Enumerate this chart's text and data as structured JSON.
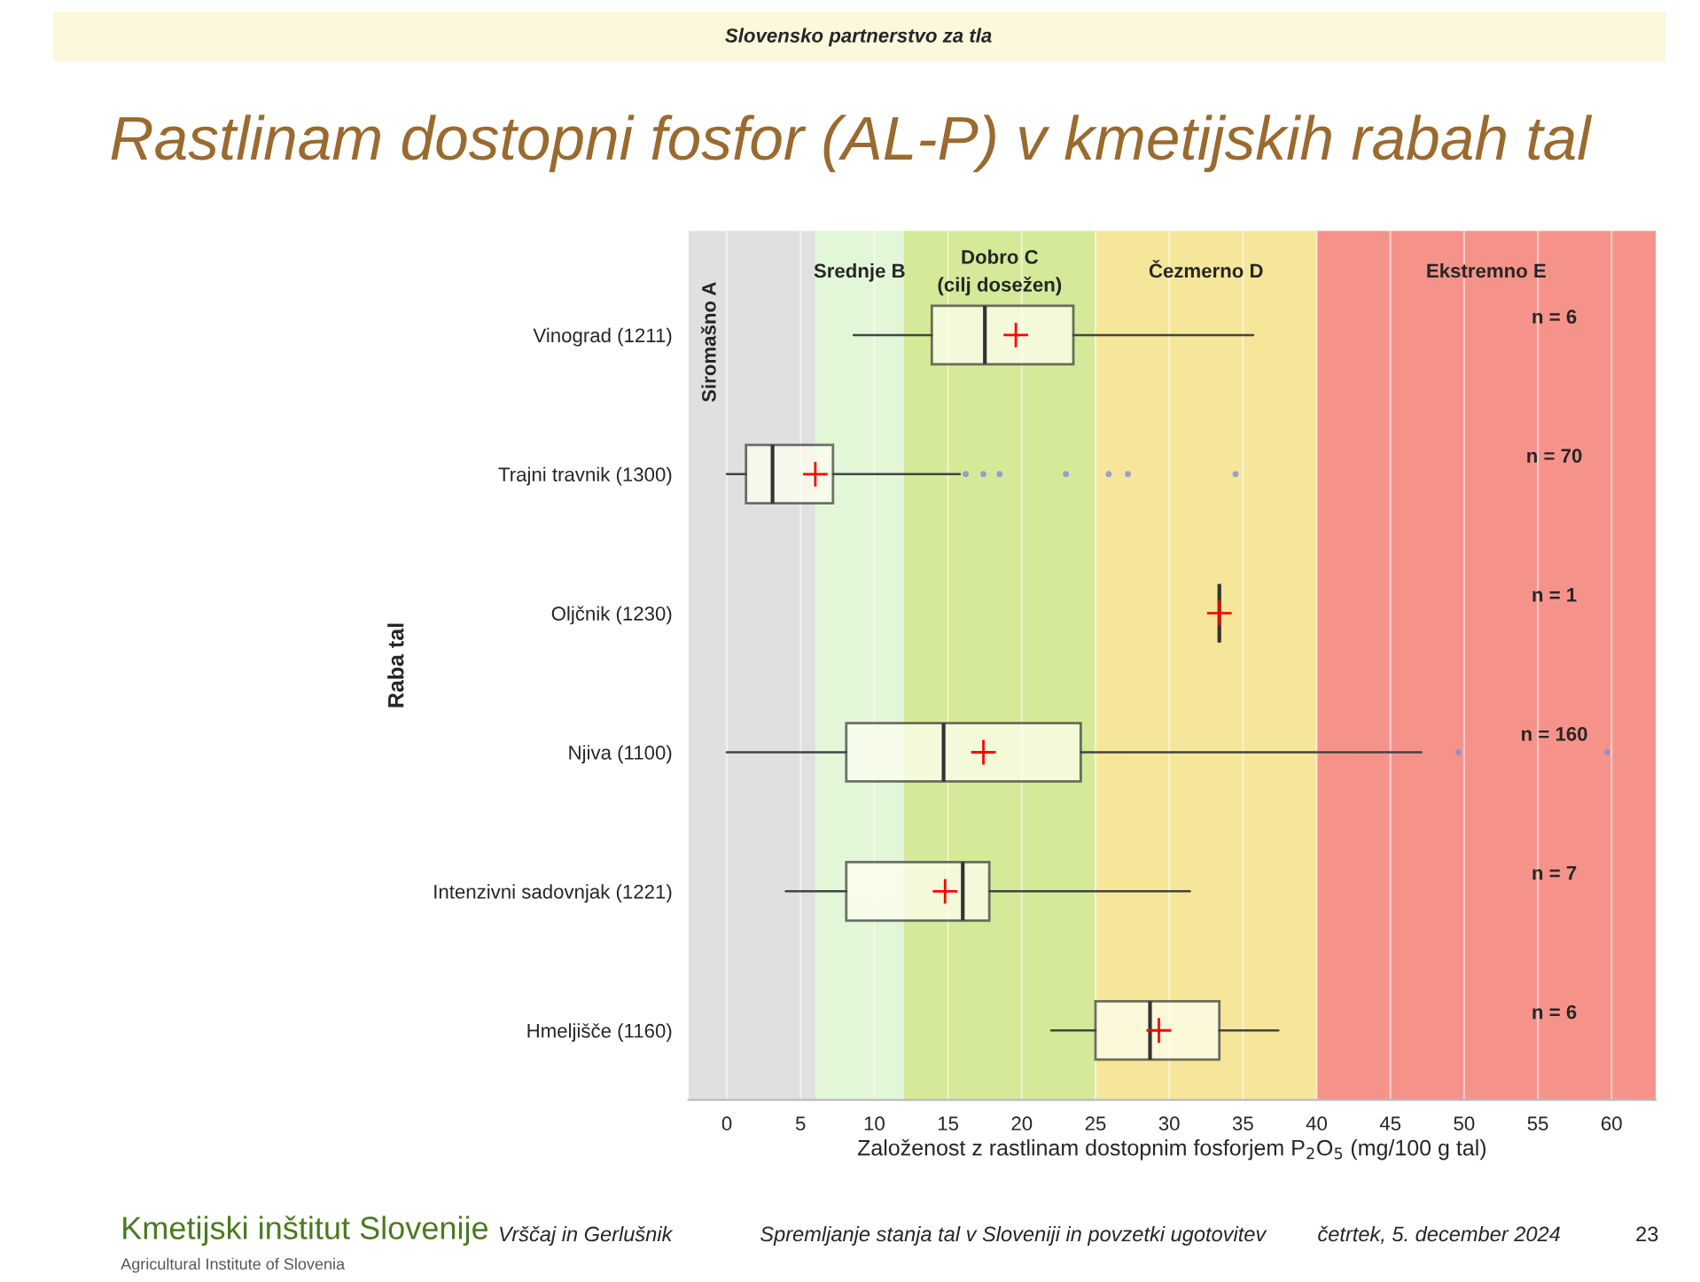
{
  "chart_data": {
    "type": "box",
    "orientation": "horizontal",
    "title": "Rastlinam dostopni fosfor (AL-P) v kmetijskih rabah tal",
    "xlabel": "Založenost z rastlinam dostopnim fosforjem P$_{2}$O$_{5}$ (mg/100 g tal)",
    "ylabel": "Raba tal",
    "categories": [
      "Vinograd (1211)",
      "Trajni travnik (1300)",
      "Oljčnik (1230)",
      "Njiva (1100)",
      "Intenzivni sadovnjak (1221)",
      "Hmeljišče (1160)"
    ],
    "boxes": [
      {
        "low": 8.6,
        "q1": 13.9,
        "median": 17.5,
        "q3": 23.5,
        "high": 35.7,
        "mean": 19.6
      },
      {
        "low": 0.0,
        "q1": 1.3,
        "median": 3.1,
        "q3": 7.2,
        "high": 15.8,
        "mean": 6.0,
        "outliers": [
          16.2,
          17.4,
          18.5,
          23.0,
          25.9,
          27.2,
          34.5
        ]
      },
      {
        "low": 33.4,
        "q1": 33.4,
        "median": 33.4,
        "q3": 33.4,
        "high": 33.4,
        "mean": 33.4
      },
      {
        "low": 0.0,
        "q1": 8.1,
        "median": 14.7,
        "q3": 24.0,
        "high": 47.1,
        "mean": 17.4,
        "outliers": [
          49.6,
          59.7
        ]
      },
      {
        "low": 4.0,
        "q1": 8.1,
        "median": 16.0,
        "q3": 17.8,
        "high": 31.4,
        "mean": 14.8
      },
      {
        "low": 22.0,
        "q1": 25.0,
        "median": 28.7,
        "q3": 33.4,
        "high": 37.4,
        "mean": 29.3
      }
    ],
    "xlim": [
      -2.6,
      63.0
    ],
    "xticks": [
      0,
      5,
      10,
      15,
      20,
      25,
      30,
      35,
      40,
      45,
      50,
      55,
      60
    ],
    "grid": "x",
    "bands": [
      {
        "axis": "x",
        "from": -2.6,
        "to": 6,
        "label": "Siromašno A",
        "color": "#e0e0e0"
      },
      {
        "axis": "x",
        "from": 6,
        "to": 12,
        "label": "Srednje B",
        "color": "#e2f6d8"
      },
      {
        "axis": "x",
        "from": 12,
        "to": 25,
        "label": "Dobro C\n(cilj dosežen)",
        "color": "#d4ea98"
      },
      {
        "axis": "x",
        "from": 25,
        "to": 40,
        "label": "Čezmerno D",
        "color": "#f5e69a"
      },
      {
        "axis": "x",
        "from": 40,
        "to": 63.0,
        "label": "Ekstremno E",
        "color": "#f5938b"
      }
    ],
    "annotations": [
      "n = 6",
      "n = 70",
      "n = 1",
      "n = 160",
      "n = 7",
      "n = 6",
      "Slovensko partnerstvo za tla",
      "Kmetijski inštitut Slovenije",
      "Agricultural Institute of Slovenia",
      "Vrščaj in Gerlušnik",
      "Spremljanje stanja tal v Sloveniji in povzetki ugotovitev",
      "četrtek, 5. december 2024",
      "23"
    ]
  }
}
